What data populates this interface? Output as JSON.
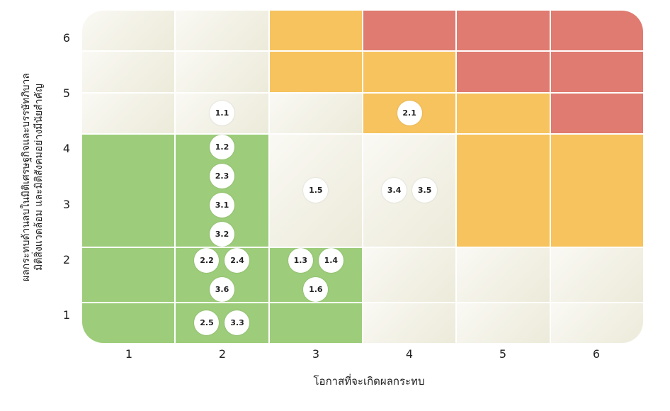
{
  "chart_data": {
    "type": "heatmap",
    "title": "",
    "xlabel": "โอกาสที่จะเกิดผลกระทบ",
    "ylabel": [
      "ผลกระทบด้านลบในมิติเศรษฐกิจและบรรษัทภิบาล",
      "มิติสิ่งแวดล้อม และมิติสังคมอย่างมีนัยสำคัญ"
    ],
    "x_ticks": [
      "1",
      "2",
      "3",
      "4",
      "5",
      "6"
    ],
    "y_ticks": [
      "1",
      "2",
      "3",
      "4",
      "5",
      "6"
    ],
    "colors": {
      "low": "#9dcd7a",
      "neutral": "#f0eee2",
      "medium": "#f6c35e",
      "high": "#df7b70"
    },
    "levels_by_row_top_to_bottom": [
      [
        "neutral",
        "neutral",
        "medium",
        "high",
        "high",
        "high"
      ],
      [
        "neutral",
        "neutral",
        "medium",
        "medium",
        "high",
        "high"
      ],
      [
        "neutral",
        "neutral",
        "neutral",
        "medium",
        "medium",
        "high"
      ],
      [
        "low",
        "low",
        "neutral",
        "neutral",
        "medium",
        "medium"
      ],
      [
        "low",
        "low",
        "low",
        "neutral",
        "neutral",
        "neutral"
      ],
      [
        "low",
        "low",
        "low",
        "neutral",
        "neutral",
        "neutral"
      ]
    ],
    "risks": [
      {
        "id": "1.1",
        "likelihood": 2,
        "impact": 4
      },
      {
        "id": "2.1",
        "likelihood": 4,
        "impact": 4
      },
      {
        "id": "1.2",
        "likelihood": 2,
        "impact": 3
      },
      {
        "id": "2.3",
        "likelihood": 2,
        "impact": 3
      },
      {
        "id": "3.1",
        "likelihood": 2,
        "impact": 3
      },
      {
        "id": "3.2",
        "likelihood": 2,
        "impact": 3
      },
      {
        "id": "1.5",
        "likelihood": 3,
        "impact": 3
      },
      {
        "id": "3.4",
        "likelihood": 4,
        "impact": 3
      },
      {
        "id": "3.5",
        "likelihood": 4,
        "impact": 3
      },
      {
        "id": "2.2",
        "likelihood": 2,
        "impact": 2
      },
      {
        "id": "2.4",
        "likelihood": 2,
        "impact": 2
      },
      {
        "id": "3.6",
        "likelihood": 2,
        "impact": 2
      },
      {
        "id": "1.3",
        "likelihood": 3,
        "impact": 2
      },
      {
        "id": "1.4",
        "likelihood": 3,
        "impact": 2
      },
      {
        "id": "1.6",
        "likelihood": 3,
        "impact": 2
      },
      {
        "id": "2.5",
        "likelihood": 2,
        "impact": 1
      },
      {
        "id": "3.3",
        "likelihood": 2,
        "impact": 1
      }
    ]
  }
}
